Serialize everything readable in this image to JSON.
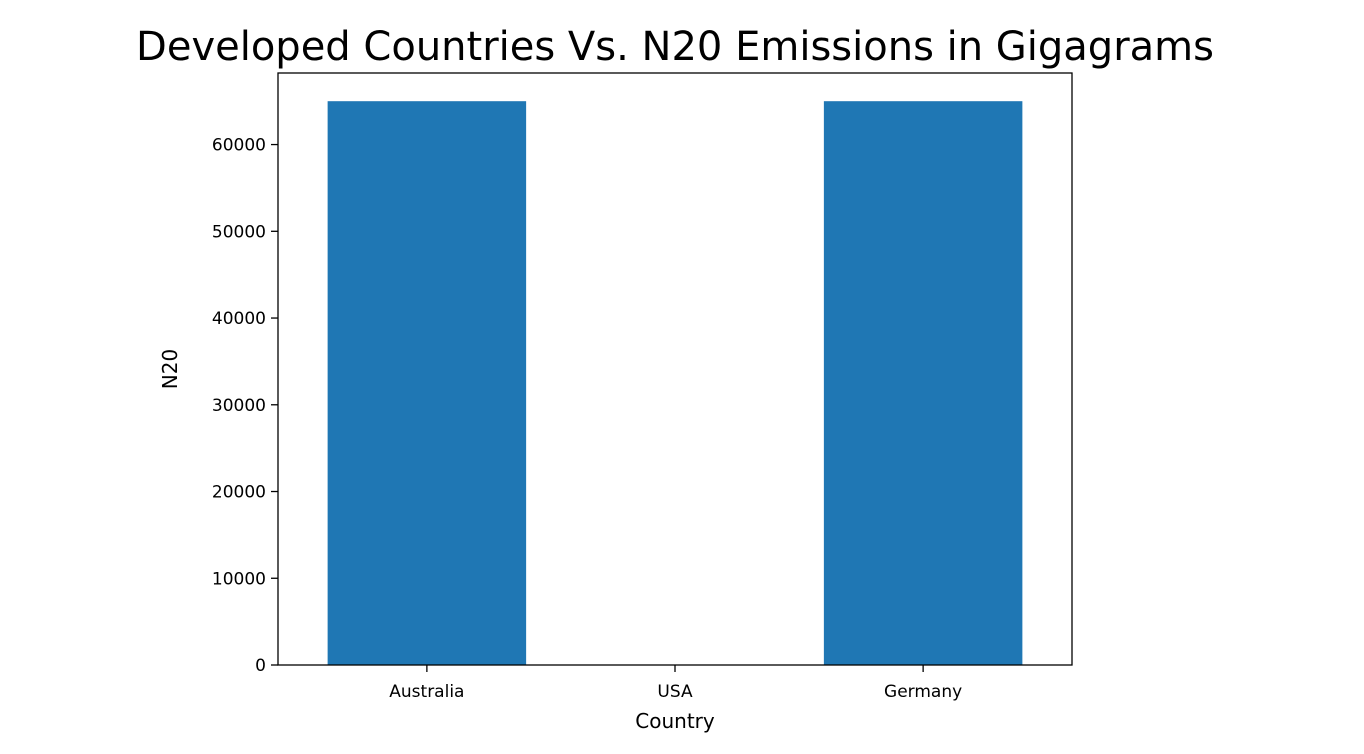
{
  "chart_data": {
    "type": "bar",
    "title": "Developed Countries Vs. N20 Emissions in Gigagrams",
    "xlabel": "Country",
    "ylabel": "N20",
    "categories": [
      "Australia",
      "USA",
      "Germany"
    ],
    "values": [
      65000,
      0,
      65000
    ],
    "ylim": [
      0,
      68250
    ],
    "yticks": [
      0,
      10000,
      20000,
      30000,
      40000,
      50000,
      60000
    ],
    "grid": false,
    "legend": "none",
    "bar_color": "#1f77b4"
  }
}
